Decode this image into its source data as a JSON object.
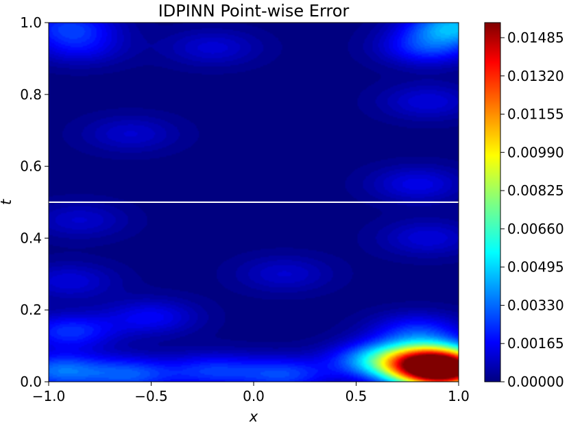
{
  "chart_data": {
    "type": "heatmap",
    "title": "IDPINN Point-wise Error",
    "xlabel": "x",
    "ylabel": "t",
    "xlim": [
      -1.0,
      1.0
    ],
    "ylim": [
      0.0,
      1.0
    ],
    "x_ticks": [
      {
        "value": -1.0,
        "label": "−1.0"
      },
      {
        "value": -0.5,
        "label": "−0.5"
      },
      {
        "value": 0.0,
        "label": "0.0"
      },
      {
        "value": 0.5,
        "label": "0.5"
      },
      {
        "value": 1.0,
        "label": "1.0"
      }
    ],
    "y_ticks": [
      {
        "value": 0.0,
        "label": "0.0"
      },
      {
        "value": 0.2,
        "label": "0.2"
      },
      {
        "value": 0.4,
        "label": "0.4"
      },
      {
        "value": 0.6,
        "label": "0.6"
      },
      {
        "value": 0.8,
        "label": "0.8"
      },
      {
        "value": 1.0,
        "label": "1.0"
      }
    ],
    "colormap": "jet",
    "colorbar": {
      "min": 0.0,
      "max": 0.0155,
      "ticks": [
        {
          "value": 0.0,
          "label": "0.00000"
        },
        {
          "value": 0.00165,
          "label": "0.00165"
        },
        {
          "value": 0.0033,
          "label": "0.00330"
        },
        {
          "value": 0.00495,
          "label": "0.00495"
        },
        {
          "value": 0.0066,
          "label": "0.00660"
        },
        {
          "value": 0.00825,
          "label": "0.00825"
        },
        {
          "value": 0.0099,
          "label": "0.00990"
        },
        {
          "value": 0.01155,
          "label": "0.01155"
        },
        {
          "value": 0.0132,
          "label": "0.01320"
        },
        {
          "value": 0.01485,
          "label": "0.01485"
        }
      ]
    },
    "reference_line": {
      "t": 0.5,
      "color": "#ffffff"
    },
    "error_features": [
      {
        "x": 0.92,
        "t": 0.03,
        "error": 0.0152
      },
      {
        "x": 0.85,
        "t": 0.06,
        "error": 0.0085
      },
      {
        "x": 0.6,
        "t": 0.06,
        "error": 0.004
      },
      {
        "x": -0.95,
        "t": 0.03,
        "error": 0.0035
      },
      {
        "x": -0.6,
        "t": 0.02,
        "error": 0.003
      },
      {
        "x": -0.2,
        "t": 0.03,
        "error": 0.0025
      },
      {
        "x": 0.15,
        "t": 0.02,
        "error": 0.0028
      },
      {
        "x": -0.9,
        "t": 0.14,
        "error": 0.0026
      },
      {
        "x": 0.8,
        "t": 0.14,
        "error": 0.0025
      },
      {
        "x": -0.5,
        "t": 0.18,
        "error": 0.0018
      },
      {
        "x": 0.15,
        "t": 0.3,
        "error": 0.0012
      },
      {
        "x": -0.9,
        "t": 0.28,
        "error": 0.0014
      },
      {
        "x": 0.85,
        "t": 0.4,
        "error": 0.0014
      },
      {
        "x": -0.85,
        "t": 0.45,
        "error": 0.0012
      },
      {
        "x": 0.8,
        "t": 0.55,
        "error": 0.0016
      },
      {
        "x": -0.6,
        "t": 0.69,
        "error": 0.0012
      },
      {
        "x": 0.85,
        "t": 0.78,
        "error": 0.0014
      },
      {
        "x": -0.2,
        "t": 0.93,
        "error": 0.0013
      },
      {
        "x": 0.85,
        "t": 0.93,
        "error": 0.0026
      },
      {
        "x": 0.98,
        "t": 0.99,
        "error": 0.0045
      },
      {
        "x": -0.9,
        "t": 0.99,
        "error": 0.0025
      },
      {
        "x": -0.85,
        "t": 0.93,
        "error": 0.0016
      }
    ]
  }
}
